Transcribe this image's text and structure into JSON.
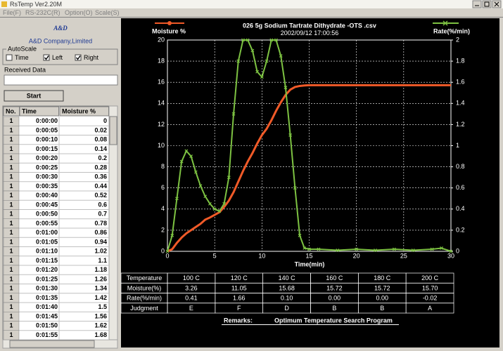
{
  "window": {
    "title": "RsTemp Ver2.20M",
    "menu": [
      "File(F)",
      "RS-232C(R)",
      "Option(O)",
      "Scale(S)"
    ]
  },
  "logo": {
    "mark": "A&D",
    "company": "A&D Company,Limited"
  },
  "autoscale": {
    "label": "AutoScale",
    "options": [
      {
        "label": "Time",
        "checked": false
      },
      {
        "label": "Left",
        "checked": true
      },
      {
        "label": "Right",
        "checked": true
      }
    ]
  },
  "received": {
    "label": "Received Data"
  },
  "start_button": "Start",
  "data_table": {
    "columns": [
      "No.",
      "Time",
      "Moisture %"
    ],
    "rows": [
      [
        1,
        "0:00:00",
        0
      ],
      [
        1,
        "0:00:05",
        0.02
      ],
      [
        1,
        "0:00:10",
        0.08
      ],
      [
        1,
        "0:00:15",
        0.14
      ],
      [
        1,
        "0:00:20",
        0.2
      ],
      [
        1,
        "0:00:25",
        0.28
      ],
      [
        1,
        "0:00:30",
        0.36
      ],
      [
        1,
        "0:00:35",
        0.44
      ],
      [
        1,
        "0:00:40",
        0.52
      ],
      [
        1,
        "0:00:45",
        0.6
      ],
      [
        1,
        "0:00:50",
        0.7
      ],
      [
        1,
        "0:00:55",
        0.78
      ],
      [
        1,
        "0:01:00",
        0.86
      ],
      [
        1,
        "0:01:05",
        0.94
      ],
      [
        1,
        "0:01:10",
        1.02
      ],
      [
        1,
        "0:01:15",
        1.1
      ],
      [
        1,
        "0:01:20",
        1.18
      ],
      [
        1,
        "0:01:25",
        1.26
      ],
      [
        1,
        "0:01:30",
        1.34
      ],
      [
        1,
        "0:01:35",
        1.42
      ],
      [
        1,
        "0:01:40",
        1.5
      ],
      [
        1,
        "0:01:45",
        1.56
      ],
      [
        1,
        "0:01:50",
        1.62
      ],
      [
        1,
        "0:01:55",
        1.68
      ]
    ]
  },
  "chart_data": {
    "type": "line",
    "title": "026 5g Sodium Tartrate Dithydrate -OTS .csv",
    "subtitle": "2002/09/12 17:00:56",
    "xlabel": "Time(min)",
    "x": [
      0,
      0.5,
      1,
      1.5,
      2,
      2.5,
      3,
      3.5,
      4,
      4.5,
      5,
      5.5,
      6,
      6.5,
      7,
      7.5,
      8,
      8.5,
      9,
      9.5,
      10,
      10.5,
      11,
      11.5,
      12,
      12.5,
      13,
      13.5,
      14,
      14.5,
      15,
      16,
      18,
      20,
      22,
      24,
      26,
      28,
      29,
      30
    ],
    "series": [
      {
        "name": "Moisture %",
        "color": "#f05a28",
        "axis": "y",
        "values": [
          0,
          0.2,
          0.8,
          1.3,
          1.7,
          2.0,
          2.3,
          2.6,
          3.0,
          3.2,
          3.45,
          3.7,
          4.2,
          4.8,
          5.6,
          6.6,
          7.6,
          8.5,
          9.3,
          10.2,
          11.0,
          11.6,
          12.4,
          13.3,
          14.1,
          14.8,
          15.3,
          15.55,
          15.65,
          15.7,
          15.72,
          15.72,
          15.72,
          15.72,
          15.72,
          15.72,
          15.72,
          15.72,
          15.72,
          15.72
        ]
      },
      {
        "name": "Rate(%/min)",
        "color": "#7dc242",
        "axis": "y2",
        "values": [
          0,
          0.15,
          0.5,
          0.85,
          0.95,
          0.9,
          0.75,
          0.62,
          0.52,
          0.45,
          0.4,
          0.38,
          0.45,
          0.7,
          1.3,
          1.8,
          2.0,
          2.0,
          1.9,
          1.7,
          1.65,
          1.8,
          2.0,
          2.0,
          1.85,
          1.55,
          1.1,
          0.6,
          0.15,
          0.03,
          0.02,
          0.02,
          0.01,
          0.02,
          0.01,
          0.02,
          0.01,
          0.02,
          0.03,
          0
        ]
      }
    ],
    "xlim": [
      0,
      30
    ],
    "xticks": [
      0,
      5,
      10,
      15,
      20,
      25,
      30
    ],
    "ylim": [
      0,
      20
    ],
    "yticks": [
      0,
      2,
      4,
      6,
      8,
      10,
      12,
      14,
      16,
      18,
      20
    ],
    "y2lim": [
      0,
      2
    ],
    "y2ticks": [
      0,
      0.2,
      0.4,
      0.6,
      0.8,
      1,
      1.2,
      1.4,
      1.6,
      1.8,
      2
    ],
    "grid": true
  },
  "results_table": {
    "columns": [
      "Temperature",
      "100 C",
      "120 C",
      "140 C",
      "160 C",
      "180 C",
      "200 C"
    ],
    "rows": [
      [
        "Moisture(%)",
        "3.26",
        "11.05",
        "15.68",
        "15.72",
        "15.72",
        "15.70"
      ],
      [
        "Rate(%/min)",
        "0.41",
        "1.66",
        "0.10",
        "0.00",
        "0.00",
        "-0.02"
      ],
      [
        "Judgment",
        "E",
        "F",
        "D",
        "B",
        "B",
        "A"
      ]
    ]
  },
  "remarks": {
    "label": "Remarks:",
    "text": "Optimum Temperature Search Program"
  }
}
